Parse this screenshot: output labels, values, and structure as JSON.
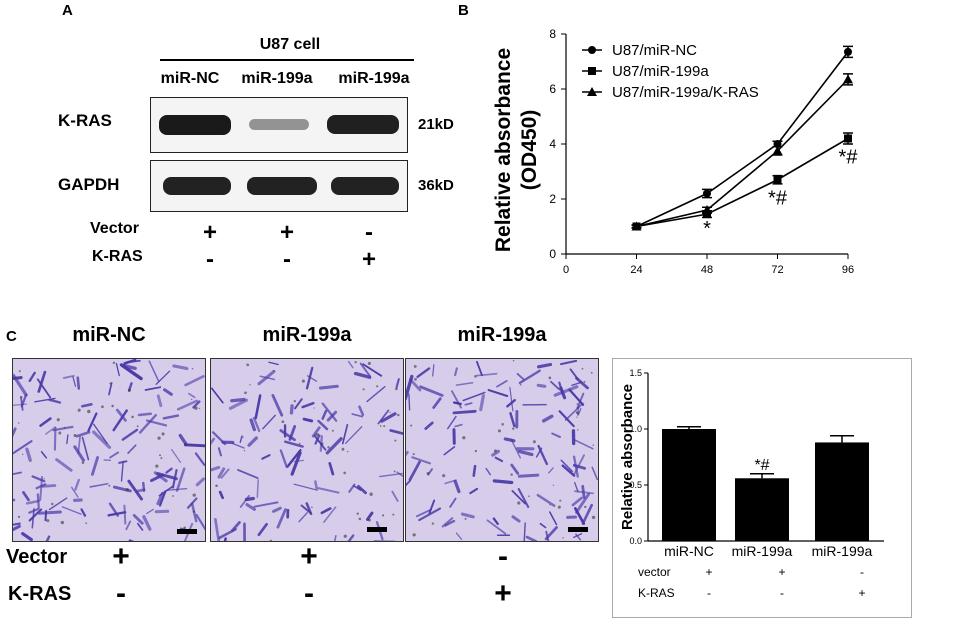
{
  "panels": {
    "a": "A",
    "b": "B",
    "c": "C"
  },
  "western_blot": {
    "header": "U87 cell",
    "lanes": [
      "miR-NC",
      "miR-199a",
      "miR-199a"
    ],
    "rows": [
      {
        "protein": "K-RAS",
        "mw": "21kD",
        "intensity": [
          1.0,
          0.25,
          0.85
        ]
      },
      {
        "protein": "GAPDH",
        "mw": "36kD",
        "intensity": [
          1.0,
          1.0,
          1.0
        ]
      }
    ],
    "treatments": [
      {
        "label": "Vector",
        "signs": [
          "+",
          "+",
          "-"
        ]
      },
      {
        "label": "K-RAS",
        "signs": [
          "-",
          "-",
          "+"
        ]
      }
    ]
  },
  "migration": {
    "titles": [
      "miR-NC",
      "miR-199a",
      "miR-199a"
    ],
    "treatments": [
      {
        "label": "Vector",
        "signs": [
          "+",
          "+",
          "-"
        ]
      },
      {
        "label": "K-RAS",
        "signs": [
          "-",
          "-",
          "+"
        ]
      }
    ],
    "stain_color": "#4a3aa8"
  },
  "chart_data": [
    {
      "type": "line",
      "panel": "B",
      "ylabel": "Relative absorbance (OD450)",
      "ylabel_lines": [
        "Relative absorbance",
        "(OD450)"
      ],
      "x": [
        24,
        48,
        72,
        96
      ],
      "xticks": [
        "0",
        "24",
        "48",
        "72",
        "96"
      ],
      "xlim": [
        0,
        96
      ],
      "yticks": [
        "0",
        "2",
        "4",
        "6",
        "8"
      ],
      "ylim": [
        0,
        8
      ],
      "series": [
        {
          "name": "U87/miR-NC",
          "marker": "circle",
          "values": [
            1.0,
            2.2,
            4.0,
            7.35
          ],
          "err": [
            0.05,
            0.15,
            0.1,
            0.2
          ]
        },
        {
          "name": "U87/miR-199a",
          "marker": "square",
          "values": [
            1.0,
            1.45,
            2.7,
            4.2
          ],
          "err": [
            0.05,
            0.12,
            0.15,
            0.2
          ]
        },
        {
          "name": "U87/miR-199a/K-RAS",
          "marker": "triangle",
          "values": [
            1.0,
            1.6,
            3.75,
            6.35
          ],
          "err": [
            0.05,
            0.1,
            0.15,
            0.2
          ]
        }
      ],
      "annotations": [
        {
          "x": 48,
          "y": 0.7,
          "text": "*"
        },
        {
          "x": 72,
          "y": 1.8,
          "text": "*#"
        },
        {
          "x": 96,
          "y": 3.3,
          "text": "*#"
        }
      ],
      "legend": "top-left",
      "grid": false
    },
    {
      "type": "bar",
      "panel": "C",
      "ylabel": "Relative absorbance",
      "categories": [
        "miR-NC",
        "miR-199a",
        "miR-199a"
      ],
      "values": [
        1.0,
        0.56,
        0.88
      ],
      "err": [
        0.02,
        0.04,
        0.06
      ],
      "yticks": [
        "0.0",
        "0.5",
        "1.0",
        "1.5"
      ],
      "ylim": [
        0,
        1.5
      ],
      "annotations": [
        {
          "index": 1,
          "text": "*#"
        }
      ],
      "row_labels": [
        {
          "label": "vector",
          "signs": [
            "+",
            "+",
            "-"
          ]
        },
        {
          "label": "K-RAS",
          "signs": [
            "-",
            "-",
            "+"
          ]
        }
      ],
      "grid": false
    }
  ]
}
